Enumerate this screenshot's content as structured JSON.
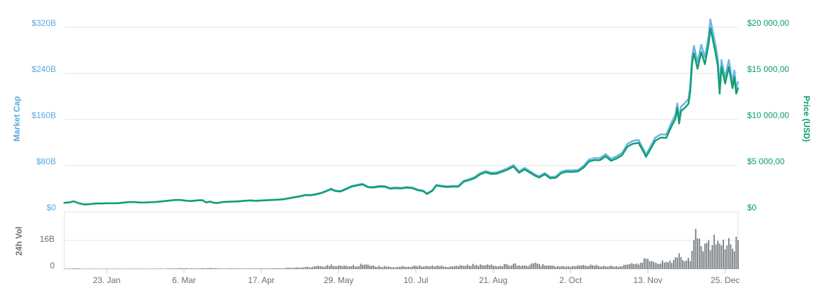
{
  "chart": {
    "axes": {
      "market_cap": {
        "title": "Market Cap",
        "ticks": [
          "$320B",
          "$240B",
          "$160B",
          "$80B",
          "$0"
        ],
        "text_color": "#58a9e0"
      },
      "price": {
        "title": "Price (USD)",
        "ticks": [
          "$20 000,00",
          "$15 000,00",
          "$10 000,00",
          "$5 000,00",
          "$0"
        ],
        "text_color": "#0c9c68"
      },
      "volume": {
        "title": "24h Vol",
        "ticks": [
          "16B",
          "0"
        ],
        "text_color": "#6e6e6e"
      },
      "x": {
        "labels": [
          "23. Jan",
          "6. Mar",
          "17. Apr",
          "29. May",
          "10. Jul",
          "21. Aug",
          "2. Oct",
          "13. Nov",
          "25. Dec"
        ]
      }
    },
    "colors": {
      "market_cap_line": "#6cb3e6",
      "price_line": "#0fa06e",
      "volume_bar": "#757c82",
      "gridline": "#e6e6e6",
      "pane_border": "#e3e3e3",
      "tick_mark": "#cccccc"
    }
  },
  "chart_data": {
    "type": "line",
    "title": "",
    "x_axis": {
      "note": "day index, day 0 = 31 Dec 2016, day 366 = 1 Jan 2018",
      "range_days": [
        0,
        366
      ],
      "tick_days": [
        23,
        65,
        107,
        149,
        191,
        233,
        275,
        317,
        359
      ],
      "tick_labels": [
        "23. Jan",
        "6. Mar",
        "17. Apr",
        "29. May",
        "10. Jul",
        "21. Aug",
        "2. Oct",
        "13. Nov",
        "25. Dec"
      ]
    },
    "left_axis": {
      "label": "Market Cap",
      "range": [
        0,
        320
      ],
      "unit": "USD billions",
      "grid": true
    },
    "right_axis": {
      "label": "Price (USD)",
      "range": [
        0,
        20000
      ],
      "unit": "USD",
      "grid": true
    },
    "volume_axis": {
      "label": "24h Vol",
      "range": [
        0,
        32
      ],
      "gridline_at": 16,
      "unit": "USD billions"
    },
    "legend": "none",
    "series": [
      {
        "name": "Price (USD)",
        "type": "line",
        "axis": "right",
        "color": "#0fa06e",
        "points": [
          [
            0,
            960
          ],
          [
            3,
            1020
          ],
          [
            5,
            1130
          ],
          [
            8,
            910
          ],
          [
            11,
            790
          ],
          [
            14,
            825
          ],
          [
            17,
            905
          ],
          [
            20,
            895
          ],
          [
            23,
            920
          ],
          [
            26,
            915
          ],
          [
            29,
            920
          ],
          [
            32,
            985
          ],
          [
            35,
            1045
          ],
          [
            38,
            1050
          ],
          [
            41,
            995
          ],
          [
            44,
            1000
          ],
          [
            47,
            1030
          ],
          [
            50,
            1060
          ],
          [
            53,
            1120
          ],
          [
            56,
            1180
          ],
          [
            60,
            1270
          ],
          [
            63,
            1275
          ],
          [
            66,
            1200
          ],
          [
            69,
            1150
          ],
          [
            72,
            1225
          ],
          [
            75,
            1250
          ],
          [
            77,
            1000
          ],
          [
            79,
            1100
          ],
          [
            81,
            975
          ],
          [
            83,
            940
          ],
          [
            86,
            1045
          ],
          [
            89,
            1080
          ],
          [
            92,
            1100
          ],
          [
            95,
            1130
          ],
          [
            98,
            1180
          ],
          [
            101,
            1220
          ],
          [
            104,
            1175
          ],
          [
            107,
            1210
          ],
          [
            110,
            1240
          ],
          [
            113,
            1270
          ],
          [
            116,
            1300
          ],
          [
            119,
            1350
          ],
          [
            122,
            1450
          ],
          [
            125,
            1560
          ],
          [
            128,
            1660
          ],
          [
            131,
            1800
          ],
          [
            134,
            1790
          ],
          [
            137,
            1890
          ],
          [
            140,
            2050
          ],
          [
            143,
            2280
          ],
          [
            145,
            2450
          ],
          [
            147,
            2250
          ],
          [
            150,
            2190
          ],
          [
            153,
            2450
          ],
          [
            156,
            2720
          ],
          [
            159,
            2850
          ],
          [
            162,
            2960
          ],
          [
            165,
            2650
          ],
          [
            168,
            2620
          ],
          [
            171,
            2730
          ],
          [
            174,
            2710
          ],
          [
            177,
            2500
          ],
          [
            180,
            2560
          ],
          [
            183,
            2520
          ],
          [
            186,
            2610
          ],
          [
            189,
            2550
          ],
          [
            192,
            2340
          ],
          [
            195,
            2230
          ],
          [
            197,
            1930
          ],
          [
            200,
            2280
          ],
          [
            202,
            2830
          ],
          [
            205,
            2750
          ],
          [
            208,
            2680
          ],
          [
            211,
            2730
          ],
          [
            214,
            2720
          ],
          [
            217,
            3260
          ],
          [
            220,
            3430
          ],
          [
            223,
            3650
          ],
          [
            226,
            4070
          ],
          [
            229,
            4280
          ],
          [
            232,
            4090
          ],
          [
            235,
            4140
          ],
          [
            238,
            4350
          ],
          [
            241,
            4580
          ],
          [
            244,
            4900
          ],
          [
            247,
            4230
          ],
          [
            250,
            4600
          ],
          [
            253,
            4230
          ],
          [
            256,
            3870
          ],
          [
            258,
            3710
          ],
          [
            261,
            4060
          ],
          [
            264,
            3630
          ],
          [
            267,
            3680
          ],
          [
            270,
            4190
          ],
          [
            273,
            4340
          ],
          [
            276,
            4320
          ],
          [
            279,
            4370
          ],
          [
            282,
            4770
          ],
          [
            285,
            5440
          ],
          [
            288,
            5600
          ],
          [
            291,
            5590
          ],
          [
            294,
            6010
          ],
          [
            297,
            5520
          ],
          [
            300,
            5770
          ],
          [
            303,
            6130
          ],
          [
            306,
            7080
          ],
          [
            309,
            7380
          ],
          [
            312,
            7460
          ],
          [
            315,
            6360
          ],
          [
            316,
            5950
          ],
          [
            318,
            6640
          ],
          [
            321,
            7700
          ],
          [
            324,
            8040
          ],
          [
            327,
            8010
          ],
          [
            330,
            9330
          ],
          [
            332,
            10080
          ],
          [
            333,
            11250
          ],
          [
            334,
            9570
          ],
          [
            335,
            10900
          ],
          [
            337,
            11250
          ],
          [
            339,
            11700
          ],
          [
            340,
            13000
          ],
          [
            341,
            16000
          ],
          [
            342,
            17200
          ],
          [
            344,
            15500
          ],
          [
            346,
            17300
          ],
          [
            348,
            16000
          ],
          [
            350,
            18200
          ],
          [
            351,
            19900
          ],
          [
            353,
            18000
          ],
          [
            354,
            17000
          ],
          [
            355,
            15800
          ],
          [
            356,
            12800
          ],
          [
            357,
            15700
          ],
          [
            359,
            13900
          ],
          [
            361,
            15700
          ],
          [
            363,
            13400
          ],
          [
            364,
            14600
          ],
          [
            365,
            12800
          ],
          [
            366,
            13400
          ]
        ]
      },
      {
        "name": "Market Cap",
        "type": "line",
        "axis": "left",
        "color": "#6cb3e6",
        "derived_from": "Price (USD)",
        "supply_model_millions": {
          "start": 16.08,
          "per_day": 0.00191
        },
        "note": "market cap billions = price × (16.08 + 0.00191 × day) / 1000"
      },
      {
        "name": "24h Vol",
        "type": "bar",
        "axis": "volume",
        "color": "#757c82",
        "points": [
          [
            0,
            0.12
          ],
          [
            5,
            0.4
          ],
          [
            10,
            0.25
          ],
          [
            16,
            0.15
          ],
          [
            23,
            0.14
          ],
          [
            30,
            0.13
          ],
          [
            38,
            0.16
          ],
          [
            45,
            0.18
          ],
          [
            52,
            0.25
          ],
          [
            58,
            0.35
          ],
          [
            63,
            0.45
          ],
          [
            68,
            0.35
          ],
          [
            74,
            0.42
          ],
          [
            77,
            0.55
          ],
          [
            82,
            0.4
          ],
          [
            88,
            0.3
          ],
          [
            95,
            0.3
          ],
          [
            102,
            0.35
          ],
          [
            108,
            0.32
          ],
          [
            114,
            0.4
          ],
          [
            120,
            0.55
          ],
          [
            126,
            0.8
          ],
          [
            131,
            1.0
          ],
          [
            136,
            1.3
          ],
          [
            141,
            1.6
          ],
          [
            145,
            2.1
          ],
          [
            148,
            1.5
          ],
          [
            152,
            1.5
          ],
          [
            157,
            1.8
          ],
          [
            162,
            2.4
          ],
          [
            166,
            1.8
          ],
          [
            171,
            1.5
          ],
          [
            176,
            1.2
          ],
          [
            181,
            1.1
          ],
          [
            186,
            1.3
          ],
          [
            191,
            1.5
          ],
          [
            195,
            1.8
          ],
          [
            197,
            2.2
          ],
          [
            200,
            2.0
          ],
          [
            203,
            1.7
          ],
          [
            208,
            1.2
          ],
          [
            212,
            1.6
          ],
          [
            217,
            2.2
          ],
          [
            220,
            2.4
          ],
          [
            224,
            2.0
          ],
          [
            227,
            2.7
          ],
          [
            231,
            2.2
          ],
          [
            235,
            1.9
          ],
          [
            239,
            2.1
          ],
          [
            244,
            2.8
          ],
          [
            248,
            2.2
          ],
          [
            252,
            1.9
          ],
          [
            256,
            3.2
          ],
          [
            259,
            2.4
          ],
          [
            263,
            1.8
          ],
          [
            267,
            1.5
          ],
          [
            271,
            1.3
          ],
          [
            275,
            1.3
          ],
          [
            279,
            1.6
          ],
          [
            283,
            1.9
          ],
          [
            286,
            2.2
          ],
          [
            290,
            2.0
          ],
          [
            294,
            1.7
          ],
          [
            298,
            1.5
          ],
          [
            302,
            1.8
          ],
          [
            306,
            2.6
          ],
          [
            310,
            2.4
          ],
          [
            313,
            3.1
          ],
          [
            317,
            7.2
          ],
          [
            319,
            4.5
          ],
          [
            323,
            4.0
          ],
          [
            326,
            3.7
          ],
          [
            329,
            4.3
          ],
          [
            332,
            5.3
          ],
          [
            334,
            6.8
          ],
          [
            336,
            5.2
          ],
          [
            338,
            5.0
          ],
          [
            340,
            6.0
          ],
          [
            342,
            13.0
          ],
          [
            343,
            21.0
          ],
          [
            344,
            23.5
          ],
          [
            345,
            18.0
          ],
          [
            347,
            14.0
          ],
          [
            349,
            13.5
          ],
          [
            351,
            15.0
          ],
          [
            353,
            17.0
          ],
          [
            355,
            14.0
          ],
          [
            356,
            18.5
          ],
          [
            358,
            13.0
          ],
          [
            360,
            12.5
          ],
          [
            362,
            19.5
          ],
          [
            363,
            16.0
          ],
          [
            364,
            14.0
          ],
          [
            365,
            17.0
          ],
          [
            366,
            13.5
          ]
        ]
      }
    ]
  }
}
